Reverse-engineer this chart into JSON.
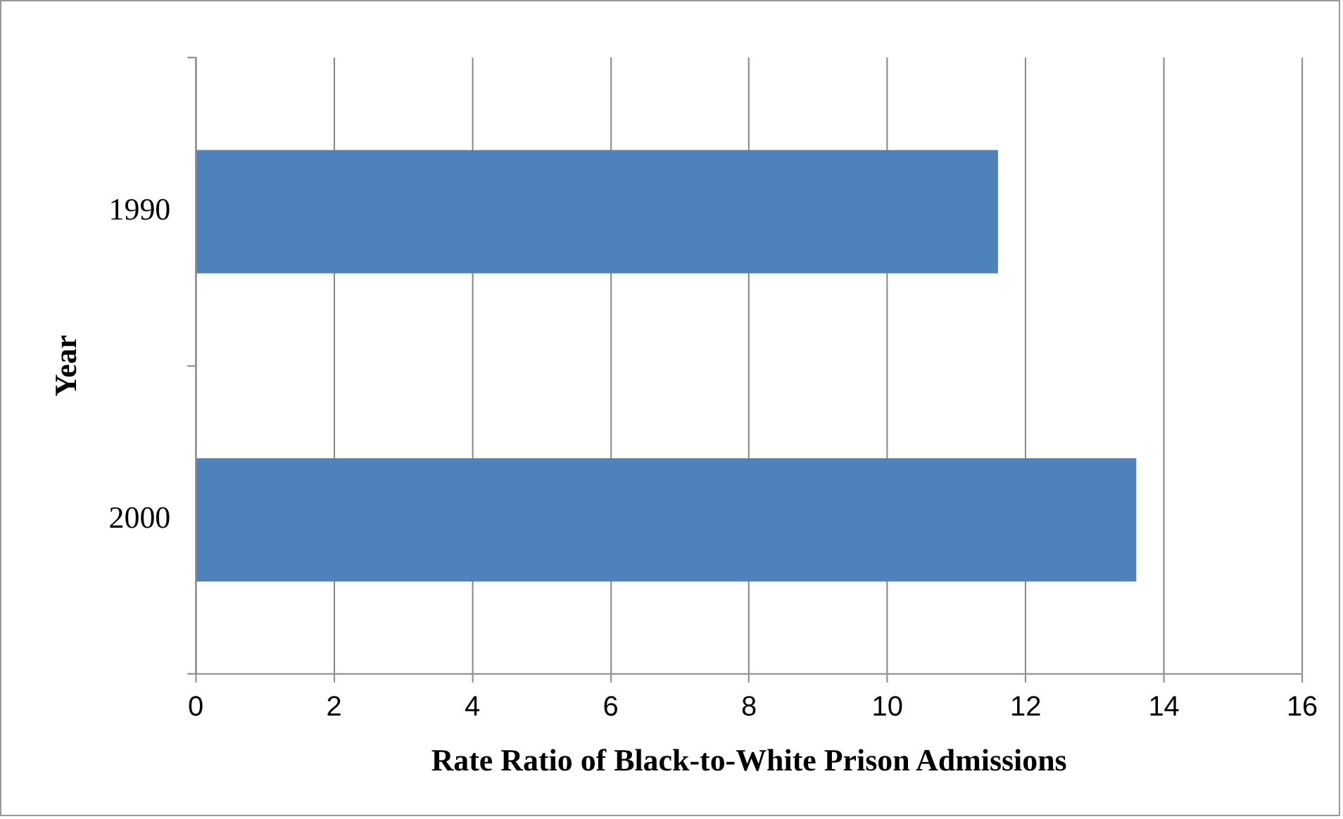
{
  "chart_data": {
    "type": "bar",
    "orientation": "horizontal",
    "categories": [
      "1990",
      "2000"
    ],
    "values": [
      11.6,
      13.6
    ],
    "color": "#4f81bd",
    "xlim": [
      0,
      16
    ],
    "xticks": [
      0,
      2,
      4,
      6,
      8,
      10,
      12,
      14,
      16
    ],
    "xlabel": "Rate Ratio of Black-to-White Prison Admissions",
    "ylabel": "Year",
    "grid": "x",
    "legend": false
  }
}
